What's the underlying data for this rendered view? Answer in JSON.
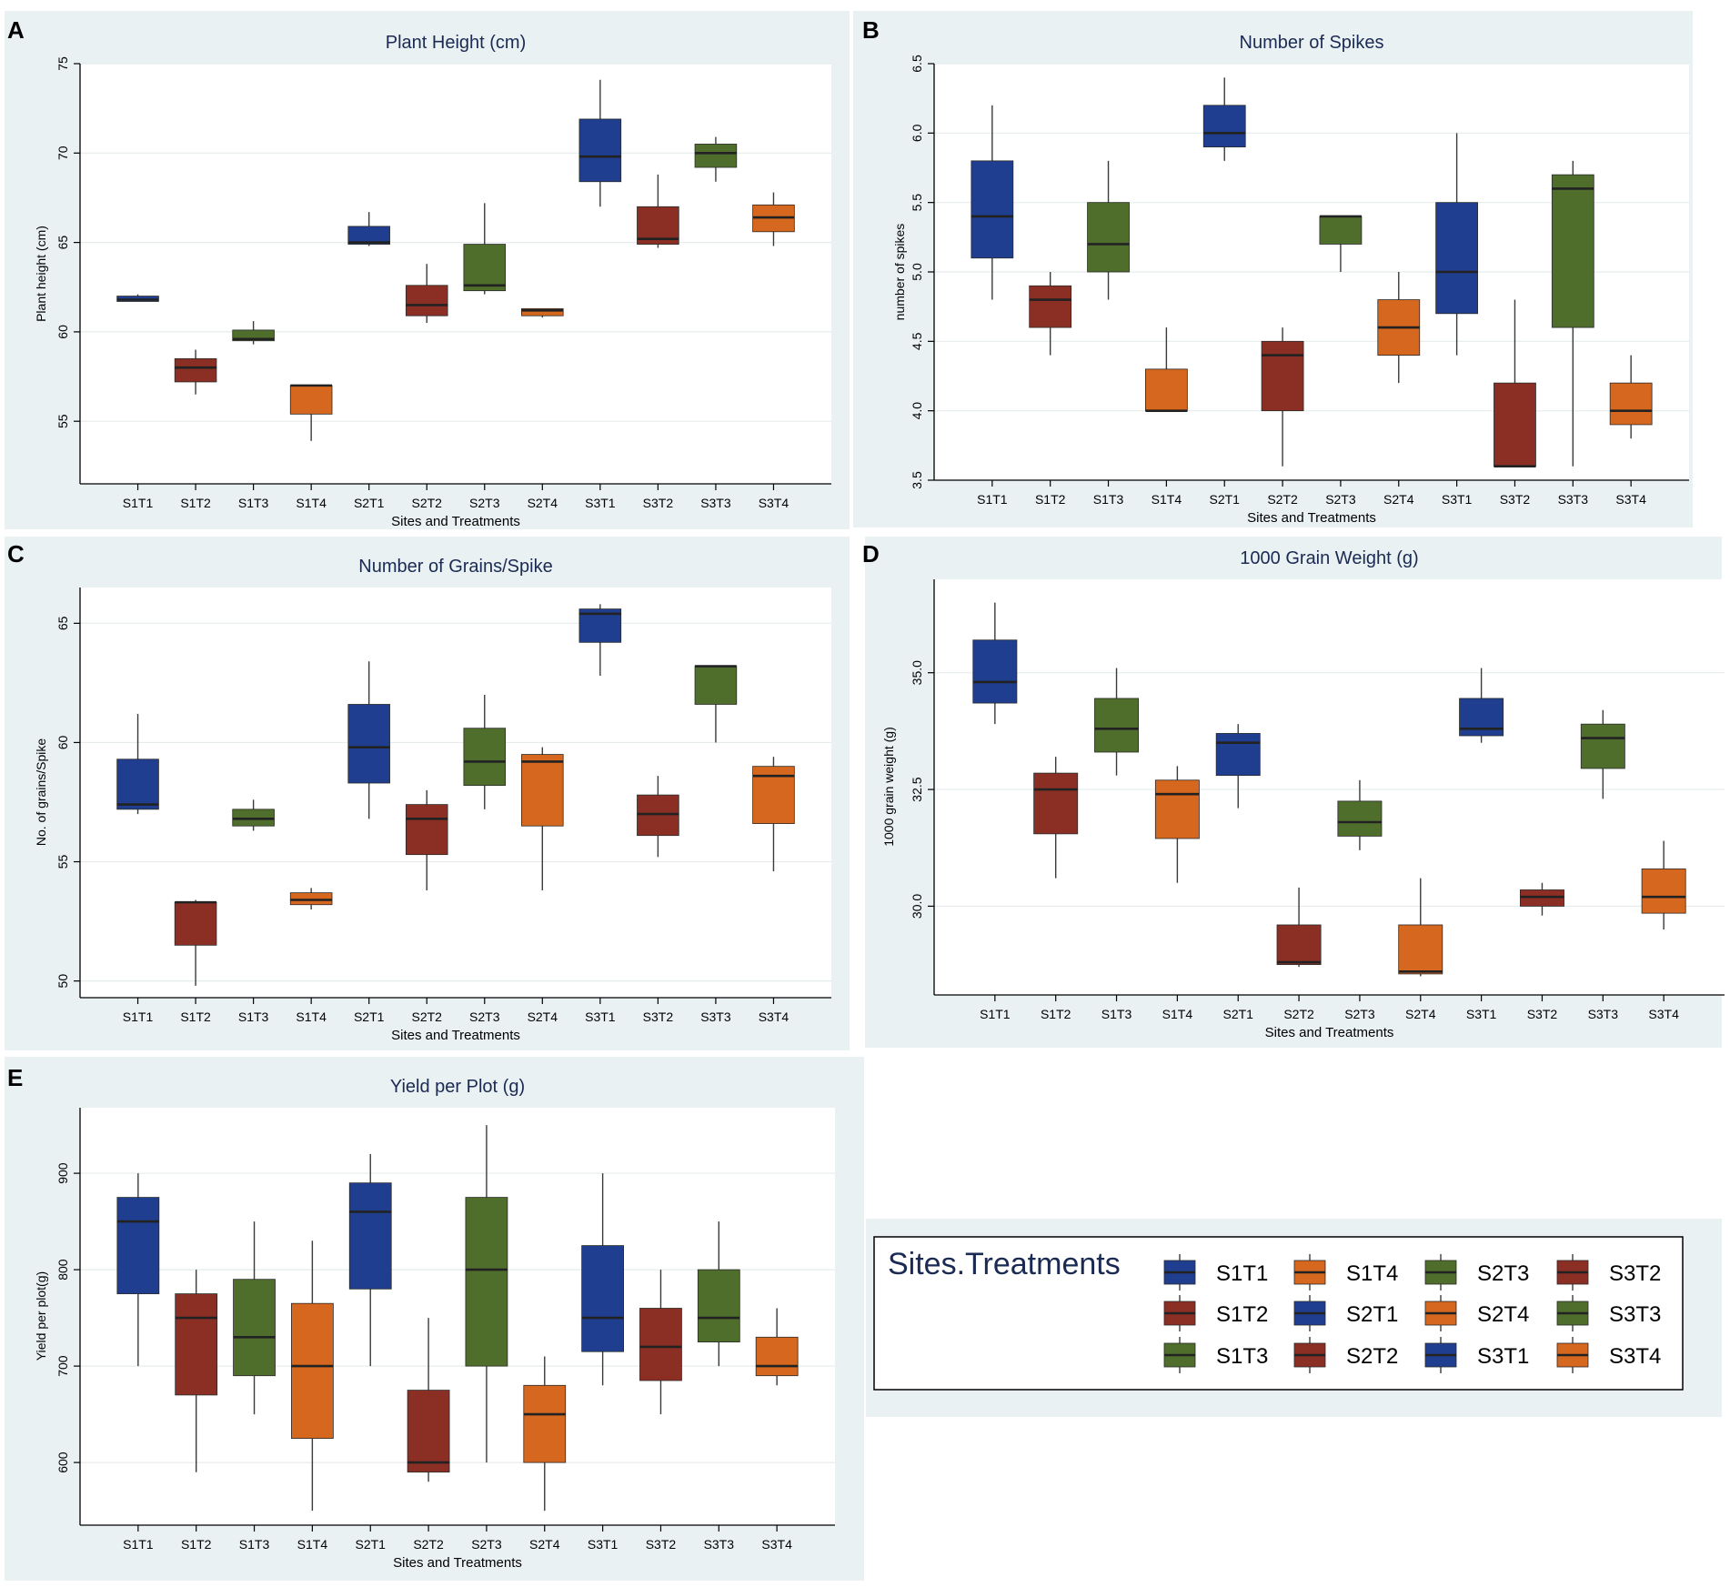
{
  "colors": {
    "panel_bg": "#e9f1f3",
    "T1": "#1f3e8f",
    "T2": "#8b2f25",
    "T3": "#4f6e2c",
    "T4": "#d5671e",
    "whisker": "#3a3a3a",
    "median": "#222222",
    "title": "#1a2a52"
  },
  "legend": {
    "title": "Sites.Treatments",
    "items": [
      "S1T1",
      "S1T2",
      "S1T3",
      "S1T4",
      "S2T1",
      "S2T2",
      "S2T3",
      "S2T4",
      "S3T1",
      "S3T2",
      "S3T3",
      "S3T4"
    ]
  },
  "chart_data": [
    {
      "panel": "A",
      "type": "box",
      "title": "Plant Height (cm)",
      "xlabel": "Sites and Treatments",
      "ylabel": "Plant height (cm)",
      "ylim": [
        51.5,
        75
      ],
      "yticks": [
        55,
        60,
        65,
        70,
        75
      ],
      "tick_format": "0",
      "categories": [
        "S1T1",
        "S1T2",
        "S1T3",
        "S1T4",
        "S2T1",
        "S2T2",
        "S2T3",
        "S2T4",
        "S3T1",
        "S3T2",
        "S3T3",
        "S3T4"
      ],
      "boxes": [
        {
          "min": 61.7,
          "q1": 61.7,
          "median": 61.8,
          "q3": 62.0,
          "max": 62.1
        },
        {
          "min": 56.5,
          "q1": 57.2,
          "median": 58.0,
          "q3": 58.5,
          "max": 59.0
        },
        {
          "min": 59.3,
          "q1": 59.5,
          "median": 59.6,
          "q3": 60.1,
          "max": 60.6
        },
        {
          "min": 53.9,
          "q1": 55.4,
          "median": 57.0,
          "q3": 57.0,
          "max": 57.0
        },
        {
          "min": 64.8,
          "q1": 64.9,
          "median": 65.0,
          "q3": 65.9,
          "max": 66.7
        },
        {
          "min": 60.5,
          "q1": 60.9,
          "median": 61.5,
          "q3": 62.6,
          "max": 63.8
        },
        {
          "min": 62.1,
          "q1": 62.3,
          "median": 62.6,
          "q3": 64.9,
          "max": 67.2
        },
        {
          "min": 60.8,
          "q1": 60.9,
          "median": 61.2,
          "q3": 61.3,
          "max": 61.3
        },
        {
          "min": 67.0,
          "q1": 68.4,
          "median": 69.8,
          "q3": 71.9,
          "max": 74.1
        },
        {
          "min": 64.7,
          "q1": 64.9,
          "median": 65.2,
          "q3": 67.0,
          "max": 68.8
        },
        {
          "min": 68.4,
          "q1": 69.2,
          "median": 70.0,
          "q3": 70.5,
          "max": 70.9
        },
        {
          "min": 64.8,
          "q1": 65.6,
          "median": 66.4,
          "q3": 67.1,
          "max": 67.8
        }
      ]
    },
    {
      "panel": "B",
      "type": "box",
      "title": "Number of Spikes",
      "xlabel": "Sites and Treatments",
      "ylabel": "number of spikes",
      "ylim": [
        3.5,
        6.5
      ],
      "yticks": [
        3.5,
        4.0,
        4.5,
        5.0,
        5.5,
        6.0,
        6.5
      ],
      "tick_format": "1",
      "categories": [
        "S1T1",
        "S1T2",
        "S1T3",
        "S1T4",
        "S2T1",
        "S2T2",
        "S2T3",
        "S2T4",
        "S3T1",
        "S3T2",
        "S3T3",
        "S3T4"
      ],
      "boxes": [
        {
          "min": 4.8,
          "q1": 5.1,
          "median": 5.4,
          "q3": 5.8,
          "max": 6.2
        },
        {
          "min": 4.4,
          "q1": 4.6,
          "median": 4.8,
          "q3": 4.9,
          "max": 5.0
        },
        {
          "min": 4.8,
          "q1": 5.0,
          "median": 5.2,
          "q3": 5.5,
          "max": 5.8
        },
        {
          "min": 4.0,
          "q1": 4.0,
          "median": 4.0,
          "q3": 4.3,
          "max": 4.6
        },
        {
          "min": 5.8,
          "q1": 5.9,
          "median": 6.0,
          "q3": 6.2,
          "max": 6.4
        },
        {
          "min": 3.6,
          "q1": 4.0,
          "median": 4.4,
          "q3": 4.5,
          "max": 4.6
        },
        {
          "min": 5.0,
          "q1": 5.2,
          "median": 5.4,
          "q3": 5.4,
          "max": 5.4
        },
        {
          "min": 4.2,
          "q1": 4.4,
          "median": 4.6,
          "q3": 4.8,
          "max": 5.0
        },
        {
          "min": 4.4,
          "q1": 4.7,
          "median": 5.0,
          "q3": 5.5,
          "max": 6.0
        },
        {
          "min": 3.6,
          "q1": 3.6,
          "median": 3.6,
          "q3": 4.2,
          "max": 4.8
        },
        {
          "min": 3.6,
          "q1": 4.6,
          "median": 5.6,
          "q3": 5.7,
          "max": 5.8
        },
        {
          "min": 3.8,
          "q1": 3.9,
          "median": 4.0,
          "q3": 4.2,
          "max": 4.4
        }
      ]
    },
    {
      "panel": "C",
      "type": "box",
      "title": "Number of Grains/Spike",
      "xlabel": "Sites and Treatments",
      "ylabel": "No. of grains/Spike",
      "ylim": [
        49.3,
        66.5
      ],
      "yticks": [
        50,
        55,
        60,
        65
      ],
      "tick_format": "0",
      "categories": [
        "S1T1",
        "S1T2",
        "S1T3",
        "S1T4",
        "S2T1",
        "S2T2",
        "S2T3",
        "S2T4",
        "S3T1",
        "S3T2",
        "S3T3",
        "S3T4"
      ],
      "boxes": [
        {
          "min": 57.0,
          "q1": 57.2,
          "median": 57.4,
          "q3": 59.3,
          "max": 61.2
        },
        {
          "min": 49.8,
          "q1": 51.5,
          "median": 53.3,
          "q3": 53.3,
          "max": 53.4
        },
        {
          "min": 56.3,
          "q1": 56.5,
          "median": 56.8,
          "q3": 57.2,
          "max": 57.6
        },
        {
          "min": 53.0,
          "q1": 53.2,
          "median": 53.4,
          "q3": 53.7,
          "max": 53.9
        },
        {
          "min": 56.8,
          "q1": 58.3,
          "median": 59.8,
          "q3": 61.6,
          "max": 63.4
        },
        {
          "min": 53.8,
          "q1": 55.3,
          "median": 56.8,
          "q3": 57.4,
          "max": 58.0
        },
        {
          "min": 57.2,
          "q1": 58.2,
          "median": 59.2,
          "q3": 60.6,
          "max": 62.0
        },
        {
          "min": 53.8,
          "q1": 56.5,
          "median": 59.2,
          "q3": 59.5,
          "max": 59.8
        },
        {
          "min": 62.8,
          "q1": 64.2,
          "median": 65.4,
          "q3": 65.6,
          "max": 65.8
        },
        {
          "min": 55.2,
          "q1": 56.1,
          "median": 57.0,
          "q3": 57.8,
          "max": 58.6
        },
        {
          "min": 60.0,
          "q1": 61.6,
          "median": 63.2,
          "q3": 63.2,
          "max": 63.2
        },
        {
          "min": 54.6,
          "q1": 56.6,
          "median": 58.6,
          "q3": 59.0,
          "max": 59.4
        }
      ]
    },
    {
      "panel": "D",
      "type": "box",
      "title": "1000 Grain Weight (g)",
      "xlabel": "Sites and Treatments",
      "ylabel": "1000 grain weight (g)",
      "ylim": [
        28.1,
        37.0
      ],
      "yticks": [
        30.0,
        32.5,
        35.0
      ],
      "tick_format": "1",
      "categories": [
        "S1T1",
        "S1T2",
        "S1T3",
        "S1T4",
        "S2T1",
        "S2T2",
        "S2T3",
        "S2T4",
        "S3T1",
        "S3T2",
        "S3T3",
        "S3T4"
      ],
      "boxes": [
        {
          "min": 33.9,
          "q1": 34.35,
          "median": 34.8,
          "q3": 35.7,
          "max": 36.5
        },
        {
          "min": 30.6,
          "q1": 31.55,
          "median": 32.5,
          "q3": 32.85,
          "max": 33.2
        },
        {
          "min": 32.8,
          "q1": 33.3,
          "median": 33.8,
          "q3": 34.45,
          "max": 35.1
        },
        {
          "min": 30.5,
          "q1": 31.45,
          "median": 32.4,
          "q3": 32.7,
          "max": 33.0
        },
        {
          "min": 32.1,
          "q1": 32.8,
          "median": 33.5,
          "q3": 33.7,
          "max": 33.9
        },
        {
          "min": 28.7,
          "q1": 28.75,
          "median": 28.8,
          "q3": 29.6,
          "max": 30.4
        },
        {
          "min": 31.2,
          "q1": 31.5,
          "median": 31.8,
          "q3": 32.25,
          "max": 32.7
        },
        {
          "min": 28.5,
          "q1": 28.55,
          "median": 28.6,
          "q3": 29.6,
          "max": 30.6
        },
        {
          "min": 33.5,
          "q1": 33.65,
          "median": 33.8,
          "q3": 34.45,
          "max": 35.1
        },
        {
          "min": 29.8,
          "q1": 30.0,
          "median": 30.2,
          "q3": 30.35,
          "max": 30.5
        },
        {
          "min": 32.3,
          "q1": 32.95,
          "median": 33.6,
          "q3": 33.9,
          "max": 34.2
        },
        {
          "min": 29.5,
          "q1": 29.85,
          "median": 30.2,
          "q3": 30.8,
          "max": 31.4
        }
      ]
    },
    {
      "panel": "E",
      "type": "box",
      "title": "Yield per Plot (g)",
      "xlabel": "Sites and Treatments",
      "ylabel": "Yield per plot(g)",
      "ylim": [
        535,
        968
      ],
      "yticks": [
        600,
        700,
        800,
        900
      ],
      "tick_format": "0",
      "categories": [
        "S1T1",
        "S1T2",
        "S1T3",
        "S1T4",
        "S2T1",
        "S2T2",
        "S2T3",
        "S2T4",
        "S3T1",
        "S3T2",
        "S3T3",
        "S3T4"
      ],
      "boxes": [
        {
          "min": 700,
          "q1": 775,
          "median": 850,
          "q3": 875,
          "max": 900
        },
        {
          "min": 590,
          "q1": 670,
          "median": 750,
          "q3": 775,
          "max": 800
        },
        {
          "min": 650,
          "q1": 690,
          "median": 730,
          "q3": 790,
          "max": 850
        },
        {
          "min": 550,
          "q1": 625,
          "median": 700,
          "q3": 765,
          "max": 830
        },
        {
          "min": 700,
          "q1": 780,
          "median": 860,
          "q3": 890,
          "max": 920
        },
        {
          "min": 580,
          "q1": 590,
          "median": 600,
          "q3": 675,
          "max": 750
        },
        {
          "min": 600,
          "q1": 700,
          "median": 800,
          "q3": 875,
          "max": 950
        },
        {
          "min": 550,
          "q1": 600,
          "median": 650,
          "q3": 680,
          "max": 710
        },
        {
          "min": 680,
          "q1": 715,
          "median": 750,
          "q3": 825,
          "max": 900
        },
        {
          "min": 650,
          "q1": 685,
          "median": 720,
          "q3": 760,
          "max": 800
        },
        {
          "min": 700,
          "q1": 725,
          "median": 750,
          "q3": 800,
          "max": 850
        },
        {
          "min": 680,
          "q1": 690,
          "median": 700,
          "q3": 730,
          "max": 760
        }
      ]
    }
  ]
}
